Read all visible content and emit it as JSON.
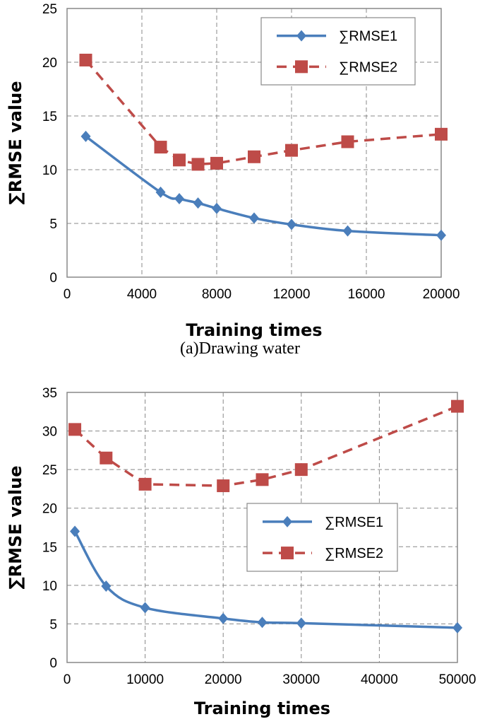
{
  "chart_data": [
    {
      "type": "line",
      "caption": "(a)Drawing water",
      "xlabel": "Training times",
      "ylabel": "∑RMSE value",
      "xlim": [
        0,
        20000
      ],
      "ylim": [
        0,
        25
      ],
      "xticks": [
        "0",
        "4000",
        "8000",
        "12000",
        "16000",
        "20000"
      ],
      "yticks": [
        "0",
        "5",
        "10",
        "15",
        "20",
        "25"
      ],
      "grid": true,
      "legend_position": "top-right",
      "series": [
        {
          "name": "∑RMSE1",
          "color": "#4a7ebb",
          "style": "solid",
          "marker": "diamond",
          "x": [
            1000,
            5000,
            6000,
            7000,
            8000,
            10000,
            12000,
            15000,
            20000
          ],
          "y": [
            13.1,
            7.9,
            7.3,
            6.9,
            6.4,
            5.5,
            4.9,
            4.3,
            3.9
          ]
        },
        {
          "name": "∑RMSE2",
          "color": "#be4b48",
          "style": "dashed",
          "marker": "square",
          "x": [
            1000,
            5000,
            6000,
            7000,
            8000,
            10000,
            12000,
            15000,
            20000
          ],
          "y": [
            20.2,
            12.1,
            10.9,
            10.5,
            10.6,
            11.2,
            11.8,
            12.6,
            13.3
          ]
        }
      ]
    },
    {
      "type": "line",
      "xlabel": "Training times",
      "ylabel": "∑RMSE value",
      "xlim": [
        0,
        50000
      ],
      "ylim": [
        0,
        35
      ],
      "xticks": [
        "0",
        "10000",
        "20000",
        "30000",
        "40000",
        "50000"
      ],
      "yticks": [
        "0",
        "5",
        "10",
        "15",
        "20",
        "25",
        "30",
        "35"
      ],
      "grid": true,
      "legend_position": "center-right",
      "series": [
        {
          "name": "∑RMSE1",
          "color": "#4a7ebb",
          "style": "solid",
          "marker": "diamond",
          "x": [
            1000,
            5000,
            10000,
            20000,
            25000,
            30000,
            50000
          ],
          "y": [
            17.0,
            9.9,
            7.1,
            5.7,
            5.2,
            5.1,
            4.5
          ]
        },
        {
          "name": "∑RMSE2",
          "color": "#be4b48",
          "style": "dashed",
          "marker": "square",
          "x": [
            1000,
            5000,
            10000,
            20000,
            25000,
            30000,
            50000
          ],
          "y": [
            30.2,
            26.5,
            23.1,
            22.9,
            23.7,
            25.0,
            33.2
          ]
        }
      ]
    }
  ]
}
